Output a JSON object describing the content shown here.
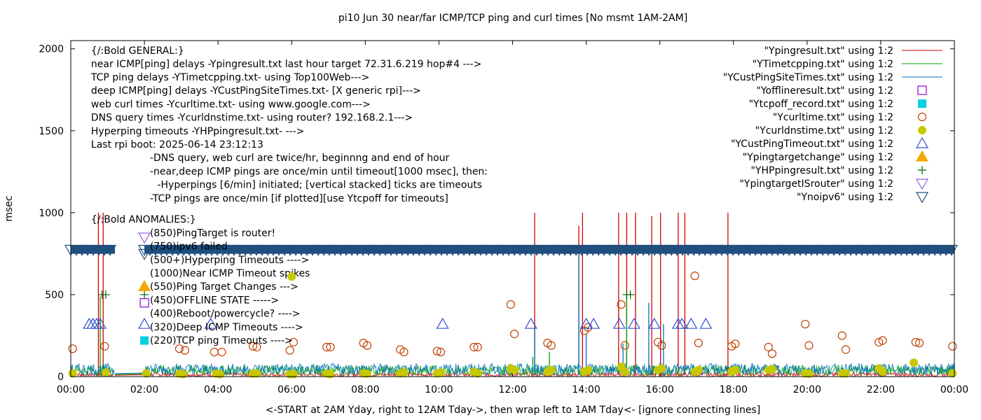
{
  "chart_data": {
    "type": "scatter",
    "title": "pi10 Jun 30  near/far ICMP/TCP ping and curl times [No msmt 1AM-2AM]",
    "xlabel": "<-START at 2AM Yday, right to 12AM Tday->, then wrap left to 1AM Tday<- [ignore connecting lines]",
    "ylabel": "msec",
    "xlim": [
      0,
      24
    ],
    "ylim": [
      0,
      2050
    ],
    "x_ticks": [
      {
        "value": 0,
        "label": "00:00"
      },
      {
        "value": 2,
        "label": "02:00"
      },
      {
        "value": 4,
        "label": "04:00"
      },
      {
        "value": 6,
        "label": "06:00"
      },
      {
        "value": 8,
        "label": "08:00"
      },
      {
        "value": 10,
        "label": "10:00"
      },
      {
        "value": 12,
        "label": "12:00"
      },
      {
        "value": 14,
        "label": "14:00"
      },
      {
        "value": 16,
        "label": "16:00"
      },
      {
        "value": 18,
        "label": "18:00"
      },
      {
        "value": 20,
        "label": "20:00"
      },
      {
        "value": 22,
        "label": "22:00"
      },
      {
        "value": 24,
        "label": "00:00"
      }
    ],
    "y_ticks": [
      {
        "value": 0,
        "label": "0"
      },
      {
        "value": 500,
        "label": "500"
      },
      {
        "value": 1000,
        "label": "1000"
      },
      {
        "value": 1500,
        "label": "1500"
      },
      {
        "value": 2000,
        "label": "2000"
      }
    ],
    "grid": false,
    "legend_position": "top-right",
    "annotations": [
      {
        "x": 0.55,
        "y": 1990,
        "text": "{/:Bold GENERAL:}"
      },
      {
        "x": 0.55,
        "y": 1910,
        "text": "near ICMP[ping] delays -Ypingresult.txt last hour target 72.31.6.219 hop#4 --->"
      },
      {
        "x": 0.55,
        "y": 1828,
        "text": "TCP ping delays -YTimetcpping.txt- using Top100Web--->"
      },
      {
        "x": 0.55,
        "y": 1746,
        "text": "deep ICMP[ping] delays -YCustPingSiteTimes.txt- [X generic rpi]--->"
      },
      {
        "x": 0.55,
        "y": 1664,
        "text": "web curl times -Ycurltime.txt- using www.google.com--->"
      },
      {
        "x": 0.55,
        "y": 1582,
        "text": "DNS query times -Ycurldnstime.txt- using router? 192.168.2.1--->"
      },
      {
        "x": 0.55,
        "y": 1500,
        "text": "Hyperping timeouts -YHPpingresult.txt- --->"
      },
      {
        "x": 0.55,
        "y": 1418,
        "text": "Last rpi boot: 2025-06-14 23:12:13"
      },
      {
        "x": 2.15,
        "y": 1336,
        "text": "-DNS query, web curl are twice/hr, beginnng and end of hour"
      },
      {
        "x": 2.15,
        "y": 1254,
        "text": "-near,deep ICMP pings are once/min until timeout[1000 msec], then:"
      },
      {
        "x": 2.35,
        "y": 1172,
        "text": "-Hyperpings [6/min] initiated; [vertical stacked] ticks are timeouts"
      },
      {
        "x": 2.15,
        "y": 1090,
        "text": "-TCP pings are once/min [if plotted][use Ytcpoff for timeouts]"
      },
      {
        "x": 0.55,
        "y": 960,
        "text": "{/:Bold ANOMALIES:}"
      },
      {
        "x": 2.15,
        "y": 878,
        "text": "(850)PingTarget is router!"
      },
      {
        "x": 2.15,
        "y": 796,
        "text": "(750)ipv6 failed"
      },
      {
        "x": 2.15,
        "y": 714,
        "text": "(500+)Hyperping Timeouts ---->"
      },
      {
        "x": 2.15,
        "y": 632,
        "text": "(1000)Near ICMP Timeout spikes"
      },
      {
        "x": 2.15,
        "y": 550,
        "text": "(550)Ping Target Changes --->"
      },
      {
        "x": 2.15,
        "y": 468,
        "text": "(450)OFFLINE STATE ----->"
      },
      {
        "x": 2.15,
        "y": 386,
        "text": "(400)Reboot/powercycle? ---->"
      },
      {
        "x": 2.15,
        "y": 304,
        "text": "(320)Deep ICMP Timeouts ---->"
      },
      {
        "x": 2.15,
        "y": 222,
        "text": "(220)TCP ping Timeouts ---->"
      }
    ],
    "series": [
      {
        "name": "\"Ypingresult.txt\" using 1:2",
        "style": "line",
        "color": "#d40000",
        "baseline": [
          0,
          25
        ],
        "spikes": [
          [
            0.75,
            1000
          ],
          [
            0.88,
            1000
          ],
          [
            12.6,
            1000
          ],
          [
            13.8,
            920
          ],
          [
            13.9,
            1000
          ],
          [
            14.88,
            1000
          ],
          [
            15.1,
            1000
          ],
          [
            15.34,
            1000
          ],
          [
            15.78,
            980
          ],
          [
            16.02,
            1000
          ],
          [
            16.5,
            1000
          ],
          [
            16.68,
            1000
          ],
          [
            17.85,
            1000
          ]
        ]
      },
      {
        "name": "\"YTimetcpping.txt\" using 1:2",
        "style": "line",
        "color": "#00a000",
        "baseline": [
          5,
          70
        ],
        "spikes": [
          [
            0.8,
            490
          ],
          [
            12.55,
            120
          ],
          [
            13.0,
            150
          ],
          [
            15.1,
            490
          ]
        ]
      },
      {
        "name": "\"YCustPingSiteTimes.txt\" using 1:2",
        "style": "line",
        "color": "#0070c0",
        "baseline": [
          10,
          80
        ],
        "spikes": [
          [
            13.8,
            800
          ],
          [
            12.6,
            300
          ],
          [
            14.0,
            260
          ],
          [
            15.7,
            450
          ],
          [
            16.1,
            320
          ],
          [
            15.0,
            200
          ]
        ]
      },
      {
        "name": "\"Yofflineresult.txt\" using 1:2",
        "style": "open-square",
        "color": "#9400d3",
        "points": []
      },
      {
        "name": "\"Ytcpoff_record.txt\" using 1:2",
        "style": "filled-square",
        "color": "#00d0e0",
        "points": []
      },
      {
        "name": "\"Ycurltime.txt\" using 1:2",
        "style": "open-circle",
        "color": "#c04000",
        "points": [
          [
            0.05,
            170
          ],
          [
            0.92,
            185
          ],
          [
            2.95,
            170
          ],
          [
            3.1,
            160
          ],
          [
            3.9,
            150
          ],
          [
            4.1,
            150
          ],
          [
            4.95,
            185
          ],
          [
            5.05,
            180
          ],
          [
            5.95,
            160
          ],
          [
            6.05,
            210
          ],
          [
            6.95,
            180
          ],
          [
            7.05,
            180
          ],
          [
            7.95,
            205
          ],
          [
            8.05,
            190
          ],
          [
            8.95,
            165
          ],
          [
            9.05,
            150
          ],
          [
            9.95,
            155
          ],
          [
            10.05,
            150
          ],
          [
            10.95,
            180
          ],
          [
            11.05,
            180
          ],
          [
            11.95,
            440
          ],
          [
            12.05,
            260
          ],
          [
            12.95,
            205
          ],
          [
            13.05,
            190
          ],
          [
            13.95,
            280
          ],
          [
            14.05,
            300
          ],
          [
            14.95,
            440
          ],
          [
            15.05,
            190
          ],
          [
            15.95,
            210
          ],
          [
            16.05,
            190
          ],
          [
            16.95,
            615
          ],
          [
            17.05,
            205
          ],
          [
            17.95,
            185
          ],
          [
            18.05,
            200
          ],
          [
            18.95,
            180
          ],
          [
            19.05,
            140
          ],
          [
            19.95,
            320
          ],
          [
            20.05,
            190
          ],
          [
            20.95,
            250
          ],
          [
            21.05,
            165
          ],
          [
            21.95,
            210
          ],
          [
            22.05,
            220
          ],
          [
            22.95,
            210
          ],
          [
            23.05,
            205
          ],
          [
            23.95,
            185
          ]
        ]
      },
      {
        "name": "\"Ycurldnstime.txt\" using 1:2",
        "style": "filled-circle",
        "color": "#c8c800",
        "points": [
          [
            0.05,
            20
          ],
          [
            0.95,
            25
          ],
          [
            2.05,
            20
          ],
          [
            2.95,
            18
          ],
          [
            3.05,
            15
          ],
          [
            3.95,
            18
          ],
          [
            4.05,
            15
          ],
          [
            4.95,
            18
          ],
          [
            5.05,
            20
          ],
          [
            5.95,
            15
          ],
          [
            6.05,
            15
          ],
          [
            6.95,
            20
          ],
          [
            7.05,
            15
          ],
          [
            7.95,
            20
          ],
          [
            8.05,
            18
          ],
          [
            8.95,
            20
          ],
          [
            9.05,
            25
          ],
          [
            9.95,
            20
          ],
          [
            10.05,
            25
          ],
          [
            10.95,
            30
          ],
          [
            11.05,
            20
          ],
          [
            11.95,
            50
          ],
          [
            12.05,
            40
          ],
          [
            12.95,
            30
          ],
          [
            13.05,
            40
          ],
          [
            13.95,
            30
          ],
          [
            14.05,
            40
          ],
          [
            14.95,
            60
          ],
          [
            15.05,
            30
          ],
          [
            15.95,
            40
          ],
          [
            16.05,
            50
          ],
          [
            16.95,
            30
          ],
          [
            17.05,
            40
          ],
          [
            17.95,
            30
          ],
          [
            18.05,
            40
          ],
          [
            18.95,
            40
          ],
          [
            19.05,
            45
          ],
          [
            19.95,
            20
          ],
          [
            20.05,
            18
          ],
          [
            20.95,
            20
          ],
          [
            21.05,
            20
          ],
          [
            21.95,
            50
          ],
          [
            22.05,
            30
          ],
          [
            22.9,
            85
          ],
          [
            23.95,
            20
          ]
        ]
      },
      {
        "name": "\"YCustPingTimeout.txt\" using 1:2",
        "style": "open-triangle",
        "color": "#3050d0",
        "points": [
          [
            0.5,
            320
          ],
          [
            0.6,
            320
          ],
          [
            0.7,
            320
          ],
          [
            0.8,
            320
          ],
          [
            3.8,
            320
          ],
          [
            10.1,
            320
          ],
          [
            12.5,
            320
          ],
          [
            14.0,
            320
          ],
          [
            14.2,
            320
          ],
          [
            14.9,
            320
          ],
          [
            15.3,
            320
          ],
          [
            15.85,
            320
          ],
          [
            16.5,
            320
          ],
          [
            16.6,
            320
          ],
          [
            16.85,
            320
          ],
          [
            17.25,
            320
          ]
        ]
      },
      {
        "name": "\"Ypingtargetchange\" using 1:2",
        "style": "filled-triangle",
        "color": "#f5a800",
        "points": []
      },
      {
        "name": "\"YHPpingresult.txt\" using 1:2",
        "style": "plus",
        "color": "#006400",
        "points": [
          [
            0.85,
            500
          ],
          [
            0.95,
            500
          ],
          [
            15.1,
            500
          ],
          [
            15.2,
            500
          ]
        ]
      },
      {
        "name": "\"YpingtargetISrouter\" using 1:2",
        "style": "open-down-triangle",
        "color": "#9060e0",
        "points": []
      },
      {
        "name": "\"Ynoipv6\" using 1:2",
        "style": "open-down-triangle",
        "color": "#1f4f7f",
        "band": {
          "y": 775,
          "x_ranges": [
            [
              0,
              1.2
            ],
            [
              2.0,
              24
            ]
          ]
        }
      },
      {
        "name": "legend-samples",
        "style": "key",
        "color": "",
        "points": [
          [
            2.0,
            850
          ],
          [
            2.0,
            750
          ],
          [
            2.0,
            500
          ],
          [
            2.0,
            550
          ],
          [
            2.0,
            450
          ],
          [
            2.0,
            320
          ],
          [
            2.0,
            220
          ],
          [
            6.0,
            610
          ]
        ]
      }
    ]
  }
}
